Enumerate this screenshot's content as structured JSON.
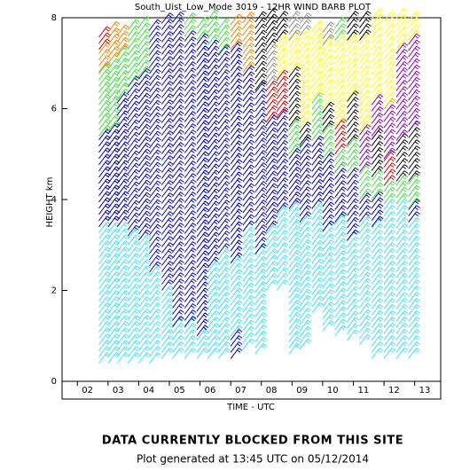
{
  "chart_data": {
    "type": "windbarb",
    "title": "South_Uist_Low_Mode 3019 - 12HR WIND BARB PLOT",
    "x_label": "TIME - UTC",
    "y_label": "HEIGHT km",
    "notice": "DATA CURRENTLY BLOCKED FROM THIS SITE",
    "footer": "Plot generated at 13:45 UTC on 05/12/2014",
    "xlim": [
      1.5,
      13.85
    ],
    "ylim": [
      0,
      8
    ],
    "xticks": [
      {
        "value": 2,
        "label": "02"
      },
      {
        "value": 3,
        "label": "03"
      },
      {
        "value": 4,
        "label": "04"
      },
      {
        "value": 5,
        "label": "05"
      },
      {
        "value": 6,
        "label": "06"
      },
      {
        "value": 7,
        "label": "07"
      },
      {
        "value": 8,
        "label": "08"
      },
      {
        "value": 9,
        "label": "09"
      },
      {
        "value": 10,
        "label": "10"
      },
      {
        "value": 11,
        "label": "11"
      },
      {
        "value": 12,
        "label": "12"
      },
      {
        "value": 13,
        "label": "13"
      }
    ],
    "yticks": [
      0,
      2,
      4,
      6,
      8
    ],
    "columns": [
      {
        "time": 2.7,
        "segments": [
          {
            "from": 0.4,
            "to": 3.4,
            "color": "#40e0f0"
          },
          {
            "from": 3.4,
            "to": 5.4,
            "color": "#0000c0"
          },
          {
            "from": 5.4,
            "to": 6.8,
            "color": "#40e040"
          },
          {
            "from": 6.8,
            "to": 7.3,
            "color": "#ff8000"
          },
          {
            "from": 7.3,
            "to": 7.7,
            "color": "#e00000"
          }
        ]
      },
      {
        "time": 3.0,
        "segments": [
          {
            "from": 0.4,
            "to": 3.4,
            "color": "#40e0f0"
          },
          {
            "from": 3.4,
            "to": 5.5,
            "color": "#0000c0"
          },
          {
            "from": 5.5,
            "to": 7.0,
            "color": "#40e040"
          },
          {
            "from": 7.0,
            "to": 7.7,
            "color": "#ff8000"
          }
        ]
      },
      {
        "time": 3.3,
        "segments": [
          {
            "from": 0.4,
            "to": 3.4,
            "color": "#40e0f0"
          },
          {
            "from": 3.4,
            "to": 6.2,
            "color": "#0000c0"
          },
          {
            "from": 6.2,
            "to": 7.2,
            "color": "#40e040"
          },
          {
            "from": 7.2,
            "to": 7.7,
            "color": "#ff8000"
          }
        ]
      },
      {
        "time": 3.65,
        "segments": [
          {
            "from": 0.4,
            "to": 3.2,
            "color": "#40e0f0"
          },
          {
            "from": 3.2,
            "to": 6.5,
            "color": "#0000c0"
          },
          {
            "from": 6.5,
            "to": 7.8,
            "color": "#40e040"
          }
        ]
      },
      {
        "time": 4.0,
        "segments": [
          {
            "from": 0.4,
            "to": 3.1,
            "color": "#40e0f0"
          },
          {
            "from": 3.1,
            "to": 6.7,
            "color": "#0000c0"
          },
          {
            "from": 6.7,
            "to": 7.8,
            "color": "#40e040"
          }
        ]
      },
      {
        "time": 4.35,
        "segments": [
          {
            "from": 0.4,
            "to": 2.4,
            "color": "#40e0f0"
          },
          {
            "from": 2.4,
            "to": 7.8,
            "color": "#0000c0"
          }
        ]
      },
      {
        "time": 4.75,
        "segments": [
          {
            "from": 0.5,
            "to": 2.0,
            "color": "#40e0f0"
          },
          {
            "from": 2.0,
            "to": 7.9,
            "color": "#0000c0"
          }
        ]
      },
      {
        "time": 5.1,
        "segments": [
          {
            "from": 0.5,
            "to": 1.2,
            "color": "#40e0f0"
          },
          {
            "from": 1.2,
            "to": 7.9,
            "color": "#0000c0"
          }
        ]
      },
      {
        "time": 5.5,
        "segments": [
          {
            "from": 0.5,
            "to": 1.2,
            "color": "#40e0f0"
          },
          {
            "from": 1.2,
            "to": 7.6,
            "color": "#0000c0"
          },
          {
            "from": 7.6,
            "to": 8.0,
            "color": "#40e040"
          }
        ]
      },
      {
        "time": 5.9,
        "segments": [
          {
            "from": 0.5,
            "to": 1.0,
            "color": "#40e0f0"
          },
          {
            "from": 1.0,
            "to": 7.5,
            "color": "#0000c0"
          },
          {
            "from": 7.5,
            "to": 7.9,
            "color": "#40e040"
          }
        ]
      },
      {
        "time": 6.25,
        "segments": [
          {
            "from": 0.5,
            "to": 2.5,
            "color": "#40e0f0"
          },
          {
            "from": 2.5,
            "to": 7.4,
            "color": "#0000c0"
          },
          {
            "from": 7.4,
            "to": 8.0,
            "color": "#40e040"
          }
        ]
      },
      {
        "time": 6.6,
        "segments": [
          {
            "from": 0.5,
            "to": 2.8,
            "color": "#40e0f0"
          },
          {
            "from": 2.8,
            "to": 7.2,
            "color": "#0000c0"
          },
          {
            "from": 7.2,
            "to": 7.8,
            "color": "#40e040"
          }
        ]
      },
      {
        "time": 7.0,
        "segments": [
          {
            "from": 0.5,
            "to": 1.0,
            "color": "#0000c0"
          },
          {
            "from": 1.0,
            "to": 2.6,
            "color": "#40e0f0"
          },
          {
            "from": 2.6,
            "to": 7.3,
            "color": "#0000c0"
          },
          {
            "from": 7.3,
            "to": 7.9,
            "color": "#ff8000"
          }
        ]
      },
      {
        "time": 7.4,
        "segments": [
          {
            "from": 0.7,
            "to": 3.3,
            "color": "#40e0f0"
          },
          {
            "from": 3.3,
            "to": 6.8,
            "color": "#0000c0"
          },
          {
            "from": 6.8,
            "to": 7.9,
            "color": "#ff8000"
          }
        ]
      },
      {
        "time": 7.8,
        "segments": [
          {
            "from": 0.6,
            "to": 2.8,
            "color": "#40e0f0"
          },
          {
            "from": 2.8,
            "to": 6.4,
            "color": "#0000c0"
          },
          {
            "from": 6.4,
            "to": 8.0,
            "color": "#000000"
          }
        ]
      },
      {
        "time": 8.15,
        "segments": [
          {
            "from": 2.0,
            "to": 3.3,
            "color": "#40e0f0"
          },
          {
            "from": 3.3,
            "to": 5.7,
            "color": "#0000c0"
          },
          {
            "from": 5.7,
            "to": 6.5,
            "color": "#e00000"
          },
          {
            "from": 6.5,
            "to": 7.3,
            "color": "#909090"
          },
          {
            "from": 7.3,
            "to": 8.0,
            "color": "#000000"
          }
        ]
      },
      {
        "time": 8.5,
        "segments": [
          {
            "from": 2.0,
            "to": 3.7,
            "color": "#40e0f0"
          },
          {
            "from": 3.7,
            "to": 5.8,
            "color": "#0000c0"
          },
          {
            "from": 5.8,
            "to": 6.7,
            "color": "#e00000"
          },
          {
            "from": 6.7,
            "to": 7.5,
            "color": "#ffff00"
          },
          {
            "from": 7.5,
            "to": 8.0,
            "color": "#000000"
          }
        ]
      },
      {
        "time": 8.9,
        "segments": [
          {
            "from": 0.6,
            "to": 3.8,
            "color": "#40e0f0"
          },
          {
            "from": 3.8,
            "to": 5.0,
            "color": "#0000c0"
          },
          {
            "from": 5.0,
            "to": 5.6,
            "color": "#40e040"
          },
          {
            "from": 5.6,
            "to": 6.8,
            "color": "#000000"
          },
          {
            "from": 6.8,
            "to": 7.5,
            "color": "#ffff00"
          },
          {
            "from": 7.5,
            "to": 8.0,
            "color": "#909090"
          }
        ]
      },
      {
        "time": 9.25,
        "segments": [
          {
            "from": 0.7,
            "to": 3.5,
            "color": "#40e0f0"
          },
          {
            "from": 3.5,
            "to": 5.2,
            "color": "#0000c0"
          },
          {
            "from": 5.2,
            "to": 5.6,
            "color": "#000000"
          },
          {
            "from": 5.6,
            "to": 7.6,
            "color": "#ffff00"
          },
          {
            "from": 7.6,
            "to": 8.0,
            "color": "#909090"
          }
        ]
      },
      {
        "time": 9.65,
        "segments": [
          {
            "from": 1.5,
            "to": 3.8,
            "color": "#40e0f0"
          },
          {
            "from": 3.8,
            "to": 5.3,
            "color": "#0000c0"
          },
          {
            "from": 5.3,
            "to": 6.2,
            "color": "#40e040"
          },
          {
            "from": 6.2,
            "to": 7.8,
            "color": "#ffff00"
          }
        ]
      },
      {
        "time": 10.0,
        "segments": [
          {
            "from": 1.1,
            "to": 3.3,
            "color": "#40e0f0"
          },
          {
            "from": 3.3,
            "to": 4.9,
            "color": "#0000c0"
          },
          {
            "from": 4.9,
            "to": 5.5,
            "color": "#40e040"
          },
          {
            "from": 5.5,
            "to": 6.0,
            "color": "#000000"
          },
          {
            "from": 6.0,
            "to": 7.4,
            "color": "#ffff00"
          },
          {
            "from": 7.4,
            "to": 7.8,
            "color": "#909090"
          }
        ]
      },
      {
        "time": 10.4,
        "segments": [
          {
            "from": 1.0,
            "to": 3.5,
            "color": "#40e0f0"
          },
          {
            "from": 3.5,
            "to": 4.6,
            "color": "#0000c0"
          },
          {
            "from": 4.6,
            "to": 5.0,
            "color": "#40e040"
          },
          {
            "from": 5.0,
            "to": 5.6,
            "color": "#e00000"
          },
          {
            "from": 5.6,
            "to": 7.5,
            "color": "#ffff00"
          },
          {
            "from": 7.5,
            "to": 7.9,
            "color": "#40e040"
          }
        ]
      },
      {
        "time": 10.8,
        "segments": [
          {
            "from": 0.9,
            "to": 3.1,
            "color": "#40e0f0"
          },
          {
            "from": 3.1,
            "to": 4.6,
            "color": "#0000c0"
          },
          {
            "from": 4.6,
            "to": 5.2,
            "color": "#40e040"
          },
          {
            "from": 5.2,
            "to": 6.2,
            "color": "#000000"
          },
          {
            "from": 6.2,
            "to": 7.5,
            "color": "#ffff00"
          },
          {
            "from": 7.5,
            "to": 8.0,
            "color": "#000000"
          }
        ]
      },
      {
        "time": 11.2,
        "segments": [
          {
            "from": 0.8,
            "to": 3.5,
            "color": "#40e0f0"
          },
          {
            "from": 3.5,
            "to": 4.0,
            "color": "#0000c0"
          },
          {
            "from": 4.0,
            "to": 4.6,
            "color": "#40e040"
          },
          {
            "from": 4.6,
            "to": 5.5,
            "color": "#9000c0"
          },
          {
            "from": 5.5,
            "to": 7.5,
            "color": "#ffff00"
          },
          {
            "from": 7.5,
            "to": 8.0,
            "color": "#000000"
          }
        ]
      },
      {
        "time": 11.6,
        "segments": [
          {
            "from": 0.5,
            "to": 3.4,
            "color": "#40e0f0"
          },
          {
            "from": 3.4,
            "to": 4.0,
            "color": "#0000c0"
          },
          {
            "from": 4.0,
            "to": 4.5,
            "color": "#40e040"
          },
          {
            "from": 4.5,
            "to": 5.4,
            "color": "#000000"
          },
          {
            "from": 5.4,
            "to": 6.2,
            "color": "#9000c0"
          },
          {
            "from": 6.2,
            "to": 8.0,
            "color": "#ffff00"
          }
        ]
      },
      {
        "time": 12.0,
        "segments": [
          {
            "from": 0.5,
            "to": 3.9,
            "color": "#40e0f0"
          },
          {
            "from": 3.9,
            "to": 4.3,
            "color": "#40e040"
          },
          {
            "from": 4.3,
            "to": 4.9,
            "color": "#e00000"
          },
          {
            "from": 4.9,
            "to": 6.0,
            "color": "#9000c0"
          },
          {
            "from": 6.0,
            "to": 8.0,
            "color": "#ffff00"
          }
        ]
      },
      {
        "time": 12.4,
        "segments": [
          {
            "from": 0.5,
            "to": 3.9,
            "color": "#40e0f0"
          },
          {
            "from": 3.9,
            "to": 4.4,
            "color": "#40e040"
          },
          {
            "from": 4.4,
            "to": 5.3,
            "color": "#000000"
          },
          {
            "from": 5.3,
            "to": 7.3,
            "color": "#9000c0"
          },
          {
            "from": 7.3,
            "to": 8.0,
            "color": "#ffff00"
          }
        ]
      },
      {
        "time": 12.8,
        "segments": [
          {
            "from": 0.5,
            "to": 3.5,
            "color": "#40e0f0"
          },
          {
            "from": 3.5,
            "to": 3.8,
            "color": "#0000c0"
          },
          {
            "from": 3.8,
            "to": 4.4,
            "color": "#40e040"
          },
          {
            "from": 4.4,
            "to": 5.5,
            "color": "#000000"
          },
          {
            "from": 5.5,
            "to": 7.5,
            "color": "#9000c0"
          },
          {
            "from": 7.5,
            "to": 8.0,
            "color": "#ffff00"
          }
        ]
      }
    ]
  }
}
